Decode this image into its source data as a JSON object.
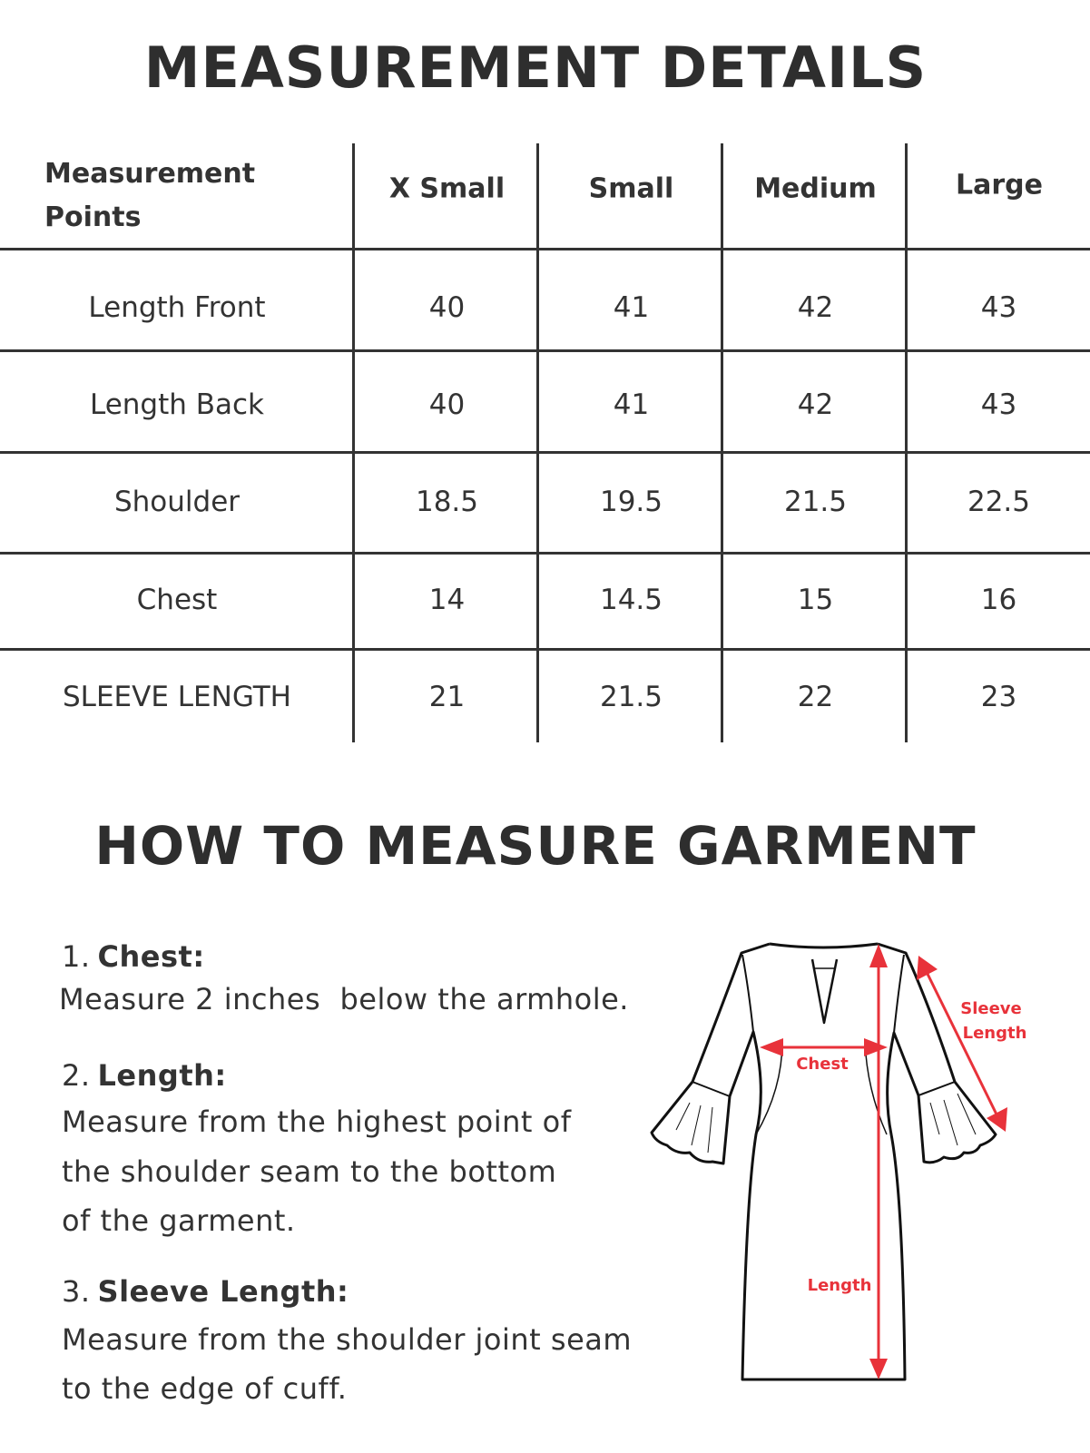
{
  "title": "MEASUREMENT DETAILS",
  "table": {
    "headers": [
      "Measurement",
      "Points",
      "X Small",
      "Small",
      "Medium",
      "Large"
    ],
    "rows": [
      {
        "label": "Length Front",
        "values": [
          "40",
          "41",
          "42",
          "43"
        ]
      },
      {
        "label": "Length Back",
        "values": [
          "40",
          "41",
          "42",
          "43"
        ]
      },
      {
        "label": "Shoulder",
        "values": [
          "18.5",
          "19.5",
          "21.5",
          "22.5"
        ]
      },
      {
        "label": "Chest",
        "values": [
          "14",
          "14.5",
          "15",
          "16"
        ]
      },
      {
        "label": "SLEEVE LENGTH",
        "values": [
          "21",
          "21.5",
          "22",
          "23"
        ]
      }
    ]
  },
  "how_to": {
    "title": "HOW TO MEASURE GARMENT",
    "steps": [
      {
        "num": "1.",
        "name": "Chest:",
        "lines": [
          "Measure 2 inches  below the armhole."
        ]
      },
      {
        "num": "2.",
        "name": "Length:",
        "lines": [
          "Measure from the highest point of",
          "the shoulder seam to the bottom",
          "of the garment."
        ]
      },
      {
        "num": "3.",
        "name": "Sleeve Length:",
        "lines": [
          "Measure from the shoulder joint seam",
          "to the edge of cuff."
        ]
      }
    ]
  },
  "diagram": {
    "chest_label": "Chest",
    "length_label": "Length",
    "sleeve_label_1": "Sleeve",
    "sleeve_label_2": "Length",
    "accent_color": "#e8323a"
  }
}
